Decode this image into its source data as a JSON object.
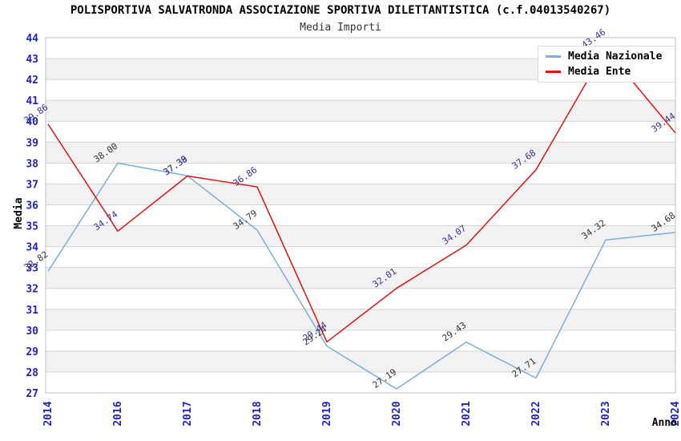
{
  "title": "POLISPORTIVA SALVATRONDA ASSOCIAZIONE SPORTIVA DILETTANTISTICA (c.f.04013540267)",
  "subtitle": "Media Importi",
  "chart_data": {
    "type": "line",
    "title": "POLISPORTIVA SALVATRONDA ASSOCIAZIONE SPORTIVA DILETTANTISTICA (c.f.04013540267)",
    "subtitle": "Media Importi",
    "xlabel": "Anno",
    "ylabel": "Media",
    "categories": [
      "2014",
      "2016",
      "2017",
      "2018",
      "2019",
      "2020",
      "2021",
      "2022",
      "2023",
      "2024"
    ],
    "series": [
      {
        "name": "Media Nazionale",
        "color": "#7aaede",
        "label_color": "#333333",
        "values": [
          32.82,
          38.0,
          37.39,
          34.79,
          29.24,
          27.19,
          29.43,
          27.71,
          34.32,
          34.68
        ]
      },
      {
        "name": "Media Ente",
        "color": "#e01212",
        "label_color": "#333399",
        "values": [
          39.86,
          34.74,
          37.38,
          36.86,
          29.44,
          32.01,
          34.07,
          37.68,
          43.46,
          39.44
        ]
      }
    ],
    "ylim": [
      27,
      44
    ],
    "ytick_step": 1,
    "grid": true,
    "band_fill": "#f2f2f2",
    "grid_color": "#d4d4d4",
    "border_color": "#c0c0c0",
    "tick_label_color": "#2222cc",
    "axis_title_color": "#000000",
    "legend_position": "top-right",
    "value_label_decimals": 2
  }
}
